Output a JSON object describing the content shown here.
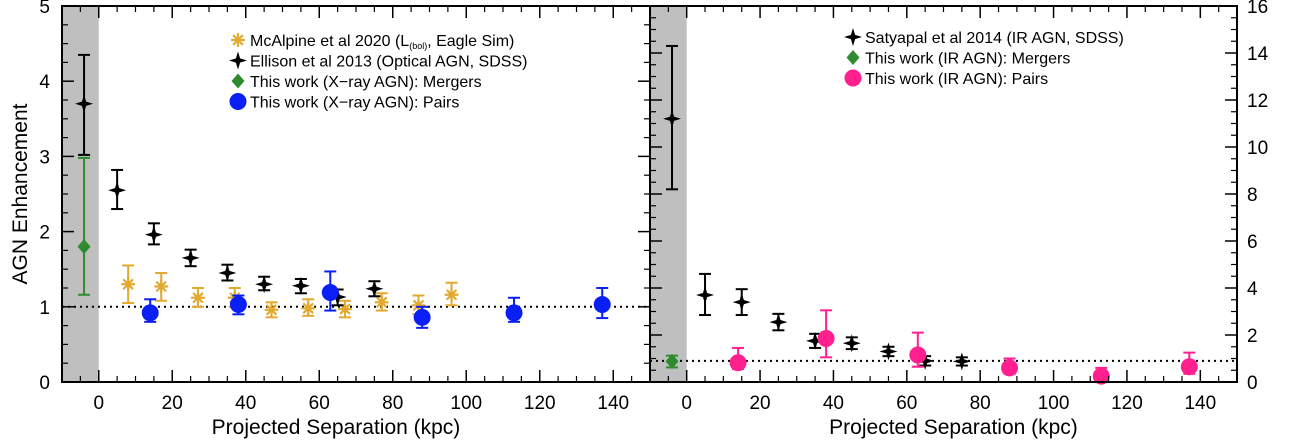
{
  "chart_data": [
    {
      "type": "scatter",
      "panel": "left",
      "xlabel": "Projected Separation (kpc)",
      "ylabel": "AGN Enhancement",
      "xlim": [
        -10,
        150
      ],
      "ylim": [
        0,
        5
      ],
      "x_ticks": [
        0,
        20,
        40,
        60,
        80,
        100,
        120,
        140
      ],
      "y_ticks": [
        0,
        1,
        2,
        3,
        4,
        5
      ],
      "shaded_region": [
        -10,
        0
      ],
      "reference_line": 1,
      "legend_position": "top-right",
      "legend": [
        {
          "series": 0,
          "pre": "McAlpine et al 2020 (L",
          "sub": "(bol)",
          "post": ", Eagle Sim)"
        },
        {
          "series": 1,
          "pre": "Ellison et al 2013 (Optical AGN, SDSS)",
          "sub": "",
          "post": ""
        },
        {
          "series": 2,
          "pre": "This work (X−ray AGN): Mergers",
          "sub": "",
          "post": ""
        },
        {
          "series": 3,
          "pre": "This work (X−ray AGN): Pairs",
          "sub": "",
          "post": ""
        }
      ],
      "series": [
        {
          "name": "McAlpine et al 2020 (L(bol), Eagle Sim)",
          "marker": "asterisk",
          "color": "#e3a92e",
          "points": [
            {
              "x": 8,
              "y": 1.3,
              "lo": 1.05,
              "hi": 1.55
            },
            {
              "x": 17,
              "y": 1.27,
              "lo": 1.08,
              "hi": 1.45
            },
            {
              "x": 27,
              "y": 1.12,
              "lo": 1.0,
              "hi": 1.25
            },
            {
              "x": 37,
              "y": 1.12,
              "lo": 1.0,
              "hi": 1.25
            },
            {
              "x": 47,
              "y": 0.96,
              "lo": 0.86,
              "hi": 1.06
            },
            {
              "x": 57,
              "y": 0.98,
              "lo": 0.88,
              "hi": 1.1
            },
            {
              "x": 67,
              "y": 0.97,
              "lo": 0.86,
              "hi": 1.08
            },
            {
              "x": 77,
              "y": 1.06,
              "lo": 0.95,
              "hi": 1.18
            },
            {
              "x": 87,
              "y": 1.02,
              "lo": 0.9,
              "hi": 1.15
            },
            {
              "x": 96,
              "y": 1.16,
              "lo": 1.02,
              "hi": 1.32
            }
          ]
        },
        {
          "name": "Ellison et al 2013 (Optical AGN, SDSS)",
          "marker": "star",
          "color": "#000000",
          "points": [
            {
              "x": -4,
              "y": 3.7,
              "lo": 3.02,
              "hi": 4.35
            },
            {
              "x": 5,
              "y": 2.55,
              "lo": 2.3,
              "hi": 2.82
            },
            {
              "x": 15,
              "y": 1.96,
              "lo": 1.83,
              "hi": 2.11
            },
            {
              "x": 25,
              "y": 1.65,
              "lo": 1.54,
              "hi": 1.76
            },
            {
              "x": 35,
              "y": 1.45,
              "lo": 1.35,
              "hi": 1.56
            },
            {
              "x": 45,
              "y": 1.3,
              "lo": 1.22,
              "hi": 1.4
            },
            {
              "x": 55,
              "y": 1.28,
              "lo": 1.18,
              "hi": 1.37
            },
            {
              "x": 65,
              "y": 1.13,
              "lo": 1.02,
              "hi": 1.23
            },
            {
              "x": 75,
              "y": 1.24,
              "lo": 1.14,
              "hi": 1.34
            }
          ]
        },
        {
          "name": "This work (X−ray AGN): Mergers",
          "marker": "diamond",
          "color": "#2e8b2e",
          "points": [
            {
              "x": -4,
              "y": 1.8,
              "lo": 1.16,
              "hi": 2.98
            }
          ]
        },
        {
          "name": "This work (X−ray AGN): Pairs",
          "marker": "circle",
          "color": "#0a1ff5",
          "points": [
            {
              "x": 14,
              "y": 0.92,
              "lo": 0.8,
              "hi": 1.1
            },
            {
              "x": 38,
              "y": 1.03,
              "lo": 0.9,
              "hi": 1.15
            },
            {
              "x": 63,
              "y": 1.19,
              "lo": 0.95,
              "hi": 1.47
            },
            {
              "x": 88,
              "y": 0.86,
              "lo": 0.72,
              "hi": 1.0
            },
            {
              "x": 113,
              "y": 0.92,
              "lo": 0.8,
              "hi": 1.12
            },
            {
              "x": 137,
              "y": 1.03,
              "lo": 0.85,
              "hi": 1.25
            }
          ]
        }
      ]
    },
    {
      "type": "scatter",
      "panel": "right",
      "xlabel": "Projected Separation (kpc)",
      "ylabel": "",
      "xlim": [
        -10,
        150
      ],
      "ylim": [
        0,
        16
      ],
      "x_ticks": [
        0,
        20,
        40,
        60,
        80,
        100,
        120,
        140
      ],
      "y_ticks": [
        0,
        2,
        4,
        6,
        8,
        10,
        12,
        14,
        16
      ],
      "shaded_region": [
        -10,
        0
      ],
      "reference_line": 0.9,
      "legend_position": "top-right",
      "legend": [
        {
          "series": 0,
          "pre": "Satyapal et al 2014 (IR AGN, SDSS)",
          "sub": "",
          "post": ""
        },
        {
          "series": 1,
          "pre": "This work (IR AGN): Mergers",
          "sub": "",
          "post": ""
        },
        {
          "series": 2,
          "pre": "This work (IR AGN): Pairs",
          "sub": "",
          "post": ""
        }
      ],
      "series": [
        {
          "name": "Satyapal et al 2014 (IR AGN, SDSS)",
          "marker": "star",
          "color": "#000000",
          "points": [
            {
              "x": -4,
              "y": 11.2,
              "lo": 8.2,
              "hi": 14.3
            },
            {
              "x": 5,
              "y": 3.7,
              "lo": 2.85,
              "hi": 4.6
            },
            {
              "x": 15,
              "y": 3.4,
              "lo": 2.85,
              "hi": 3.95
            },
            {
              "x": 25,
              "y": 2.55,
              "lo": 2.2,
              "hi": 2.9
            },
            {
              "x": 35,
              "y": 1.75,
              "lo": 1.45,
              "hi": 2.05
            },
            {
              "x": 45,
              "y": 1.65,
              "lo": 1.4,
              "hi": 1.9
            },
            {
              "x": 55,
              "y": 1.3,
              "lo": 1.1,
              "hi": 1.5
            },
            {
              "x": 65,
              "y": 0.9,
              "lo": 0.7,
              "hi": 1.1
            },
            {
              "x": 75,
              "y": 0.88,
              "lo": 0.7,
              "hi": 1.05
            }
          ]
        },
        {
          "name": "This work (IR AGN): Mergers",
          "marker": "diamond",
          "color": "#2e8b2e",
          "points": [
            {
              "x": -4,
              "y": 0.88,
              "lo": 0.62,
              "hi": 1.12
            }
          ]
        },
        {
          "name": "This work (IR AGN): Pairs",
          "marker": "circle",
          "color": "#ff1f8f",
          "points": [
            {
              "x": 14,
              "y": 0.82,
              "lo": 0.55,
              "hi": 1.45
            },
            {
              "x": 38,
              "y": 1.85,
              "lo": 1.05,
              "hi": 3.05
            },
            {
              "x": 63,
              "y": 1.15,
              "lo": 0.65,
              "hi": 2.1
            },
            {
              "x": 88,
              "y": 0.6,
              "lo": 0.35,
              "hi": 1.0
            },
            {
              "x": 113,
              "y": 0.25,
              "lo": 0.1,
              "hi": 0.6
            },
            {
              "x": 137,
              "y": 0.65,
              "lo": 0.35,
              "hi": 1.25
            }
          ]
        }
      ]
    }
  ]
}
